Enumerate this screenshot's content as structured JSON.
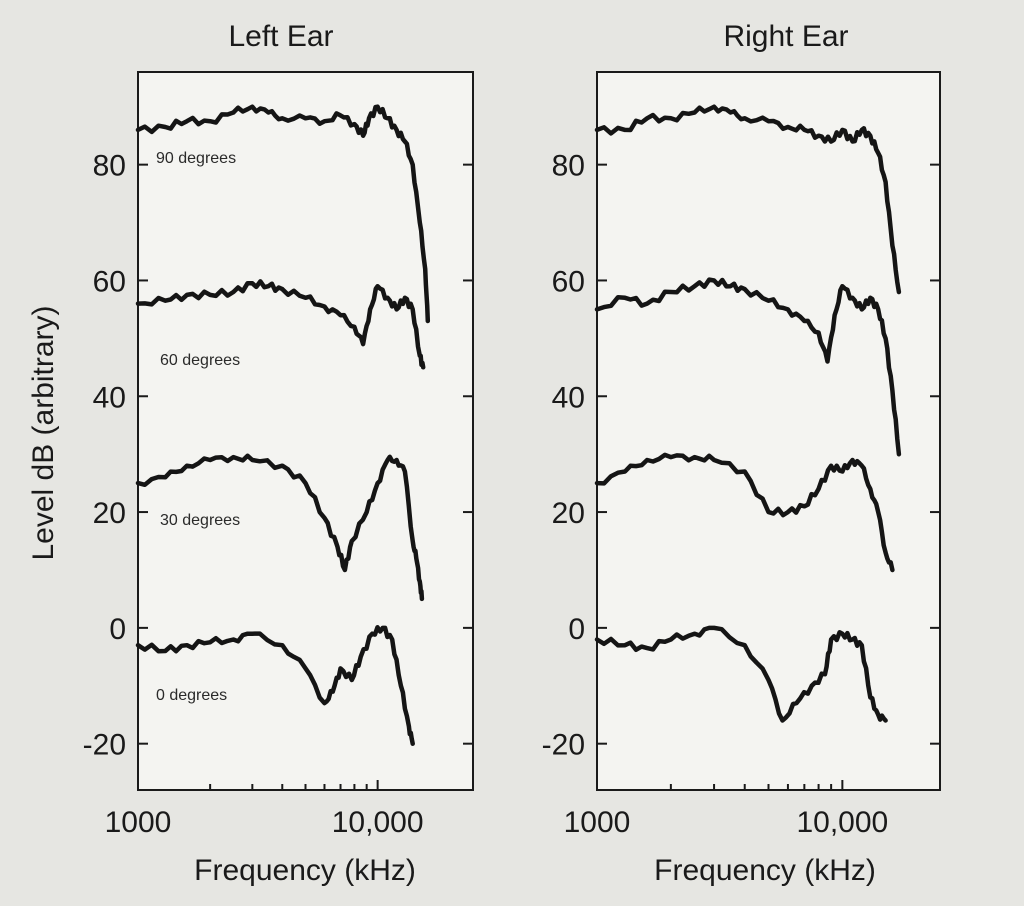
{
  "chart_data": [
    {
      "type": "line",
      "title": "Left Ear",
      "xlabel": "Frequency (kHz)",
      "ylabel": "Level dB (arbitrary)",
      "xscale": "log",
      "xlim": [
        1000,
        25000
      ],
      "ylim": [
        -28,
        96
      ],
      "yticks": [
        80,
        60,
        40,
        20,
        0,
        -20
      ],
      "xticks": [
        {
          "value": 1000,
          "label": "1000"
        },
        {
          "value": 10000,
          "label": "10,000"
        }
      ],
      "grid": false,
      "series": [
        {
          "name": "90 degrees",
          "points": [
            [
              1000,
              86
            ],
            [
              1300,
              86.5
            ],
            [
              1600,
              87.5
            ],
            [
              2000,
              87.5
            ],
            [
              2500,
              89
            ],
            [
              3000,
              90
            ],
            [
              3500,
              89
            ],
            [
              4000,
              88
            ],
            [
              5000,
              88
            ],
            [
              6000,
              87.5
            ],
            [
              7000,
              88.5
            ],
            [
              8000,
              87
            ],
            [
              8700,
              85
            ],
            [
              9200,
              88
            ],
            [
              10000,
              90
            ],
            [
              11000,
              88
            ],
            [
              12000,
              86
            ],
            [
              13000,
              84
            ],
            [
              14000,
              80
            ],
            [
              15000,
              70
            ],
            [
              15800,
              62
            ],
            [
              16200,
              53
            ]
          ]
        },
        {
          "name": "60 degrees",
          "points": [
            [
              1000,
              56
            ],
            [
              1300,
              56.5
            ],
            [
              1600,
              57.5
            ],
            [
              2000,
              57.5
            ],
            [
              2500,
              58
            ],
            [
              3000,
              59.5
            ],
            [
              3500,
              59
            ],
            [
              4000,
              58.5
            ],
            [
              5000,
              57
            ],
            [
              6000,
              55.5
            ],
            [
              7000,
              54
            ],
            [
              8000,
              52
            ],
            [
              8700,
              49
            ],
            [
              9300,
              55
            ],
            [
              10000,
              59
            ],
            [
              11000,
              57
            ],
            [
              12000,
              55
            ],
            [
              13000,
              57
            ],
            [
              14000,
              55
            ],
            [
              15000,
              47
            ],
            [
              15500,
              45
            ]
          ]
        },
        {
          "name": "30 degrees",
          "points": [
            [
              1000,
              25
            ],
            [
              1300,
              26
            ],
            [
              1600,
              28
            ],
            [
              2000,
              29
            ],
            [
              2500,
              29.5
            ],
            [
              3000,
              29
            ],
            [
              4000,
              28
            ],
            [
              5000,
              25
            ],
            [
              6000,
              19
            ],
            [
              6800,
              14
            ],
            [
              7300,
              10
            ],
            [
              7800,
              15
            ],
            [
              9000,
              20
            ],
            [
              10000,
              25
            ],
            [
              11000,
              29
            ],
            [
              12000,
              29
            ],
            [
              13000,
              27
            ],
            [
              14000,
              15
            ],
            [
              14500,
              12
            ],
            [
              15000,
              8
            ],
            [
              15300,
              5
            ]
          ]
        },
        {
          "name": "0 degrees",
          "points": [
            [
              1000,
              -3
            ],
            [
              1300,
              -4
            ],
            [
              1600,
              -3
            ],
            [
              2000,
              -2.5
            ],
            [
              2500,
              -2
            ],
            [
              3000,
              -1
            ],
            [
              4000,
              -3
            ],
            [
              5000,
              -7
            ],
            [
              6000,
              -13
            ],
            [
              6500,
              -11
            ],
            [
              7000,
              -7
            ],
            [
              7800,
              -9
            ],
            [
              8500,
              -5
            ],
            [
              9500,
              -1
            ],
            [
              10500,
              0
            ],
            [
              11500,
              -2
            ],
            [
              12500,
              -10
            ],
            [
              13500,
              -17
            ],
            [
              14000,
              -20
            ]
          ]
        }
      ]
    },
    {
      "type": "line",
      "title": "Right Ear",
      "xlabel": "Frequency (kHz)",
      "ylabel": "",
      "xscale": "log",
      "xlim": [
        1000,
        25000
      ],
      "ylim": [
        -28,
        96
      ],
      "yticks": [
        80,
        60,
        40,
        20,
        0,
        -20
      ],
      "xticks": [
        {
          "value": 1000,
          "label": "1000"
        },
        {
          "value": 10000,
          "label": "10,000"
        }
      ],
      "grid": false,
      "series": [
        {
          "name": "",
          "points": [
            [
              1000,
              86
            ],
            [
              1300,
              86
            ],
            [
              1600,
              88
            ],
            [
              2000,
              88
            ],
            [
              2500,
              89
            ],
            [
              3000,
              90
            ],
            [
              3500,
              89
            ],
            [
              4000,
              88
            ],
            [
              5000,
              87.5
            ],
            [
              6000,
              86.5
            ],
            [
              7000,
              86
            ],
            [
              8000,
              85
            ],
            [
              9000,
              84
            ],
            [
              10000,
              86
            ],
            [
              11000,
              84
            ],
            [
              12000,
              86
            ],
            [
              13000,
              85
            ],
            [
              14000,
              82
            ],
            [
              15000,
              77
            ],
            [
              16000,
              66
            ],
            [
              17000,
              58
            ]
          ]
        },
        {
          "name": "",
          "points": [
            [
              1000,
              55
            ],
            [
              1300,
              57
            ],
            [
              1600,
              56
            ],
            [
              2000,
              58
            ],
            [
              2500,
              59
            ],
            [
              3000,
              60
            ],
            [
              3500,
              59
            ],
            [
              4000,
              58.5
            ],
            [
              5000,
              56.5
            ],
            [
              6000,
              55
            ],
            [
              7000,
              53
            ],
            [
              8000,
              51
            ],
            [
              8700,
              46
            ],
            [
              9300,
              54
            ],
            [
              10000,
              59
            ],
            [
              11000,
              57
            ],
            [
              12000,
              55
            ],
            [
              13000,
              57
            ],
            [
              14000,
              55
            ],
            [
              15000,
              50
            ],
            [
              16000,
              41
            ],
            [
              17000,
              30
            ]
          ]
        },
        {
          "name": "",
          "points": [
            [
              1000,
              25
            ],
            [
              1300,
              27
            ],
            [
              1600,
              29
            ],
            [
              2000,
              29.5
            ],
            [
              2500,
              29.5
            ],
            [
              3000,
              29
            ],
            [
              4000,
              27
            ],
            [
              5000,
              20
            ],
            [
              6000,
              20
            ],
            [
              7000,
              21
            ],
            [
              8000,
              24
            ],
            [
              9000,
              28
            ],
            [
              10000,
              27
            ],
            [
              11000,
              29
            ],
            [
              12000,
              28
            ],
            [
              13000,
              24
            ],
            [
              14000,
              20
            ],
            [
              15000,
              13
            ],
            [
              16000,
              10
            ]
          ]
        },
        {
          "name": "",
          "points": [
            [
              1000,
              -2
            ],
            [
              1300,
              -3
            ],
            [
              1600,
              -3.5
            ],
            [
              2000,
              -2
            ],
            [
              2500,
              -1
            ],
            [
              3000,
              0
            ],
            [
              4000,
              -3
            ],
            [
              5000,
              -9
            ],
            [
              5700,
              -16
            ],
            [
              6500,
              -13
            ],
            [
              7500,
              -10
            ],
            [
              8500,
              -8
            ],
            [
              9000,
              -2
            ],
            [
              10000,
              -1
            ],
            [
              11000,
              -2
            ],
            [
              12000,
              -3
            ],
            [
              13000,
              -12
            ],
            [
              14000,
              -15
            ],
            [
              15000,
              -16
            ]
          ]
        }
      ]
    }
  ]
}
